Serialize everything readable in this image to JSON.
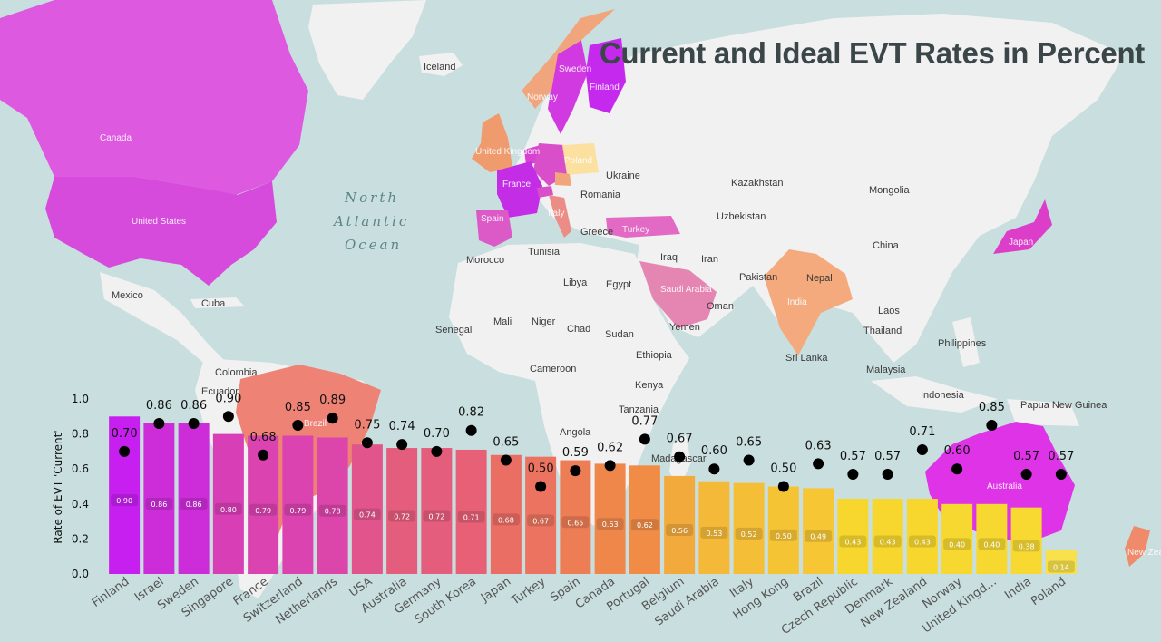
{
  "title": "Current and Ideal EVT Rates in Percent",
  "colors": {
    "ocean": "#c9dede",
    "land": "#f1f1f1",
    "high": "#c61ff0",
    "mid": "#e86e56",
    "low": "#f7de2d",
    "dot": "#000000"
  },
  "map": {
    "country_labels": [
      "Canada",
      "United States",
      "Mexico",
      "Cuba",
      "Colombia",
      "Ecuador",
      "Brazil",
      "Iceland",
      "Sweden",
      "Norway",
      "Finland",
      "United Kingdom",
      "Poland",
      "France",
      "Spain",
      "Italy",
      "Ukraine",
      "Romania",
      "Greece",
      "Turkey",
      "Tunisia",
      "Morocco",
      "Libya",
      "Egypt",
      "Iraq",
      "Iran",
      "Saudi Arabia",
      "Oman",
      "Yemen",
      "Kazakhstan",
      "Uzbekistan",
      "Mongolia",
      "China",
      "Pakistan",
      "Nepal",
      "India",
      "Sri Lanka",
      "Laos",
      "Thailand",
      "Philippines",
      "Malaysia",
      "Indonesia",
      "Papua New Guinea",
      "Japan",
      "Australia",
      "New Zealand",
      "Senegal",
      "Mali",
      "Niger",
      "Chad",
      "Sudan",
      "Ethiopia",
      "Cameroon",
      "Kenya",
      "Tanzania",
      "Angola",
      "Madagascar"
    ],
    "ocean_label": [
      "North",
      "Atlantic",
      "Ocean"
    ]
  },
  "chart_data": {
    "type": "bar",
    "title": "Current and Ideal EVT Rates in Percent",
    "ylabel": "Rate of EVT 'Current'",
    "xlabel": "",
    "ylim": [
      0,
      1.0
    ],
    "yticks": [
      "0.0",
      "0.2",
      "0.4",
      "0.6",
      "0.8",
      "1.0"
    ],
    "legend": "none",
    "grid": false,
    "categories": [
      "Finland",
      "Israel",
      "Sweden",
      "Singapore",
      "France",
      "Switzerland",
      "Netherlands",
      "USA",
      "Australia",
      "Germany",
      "South Korea",
      "Japan",
      "Turkey",
      "Spain",
      "Canada",
      "Portugal",
      "Belgium",
      "Saudi Arabia",
      "Italy",
      "Hong Kong",
      "Brazil",
      "Czech Republic",
      "Denmark",
      "New Zealand",
      "Norway",
      "United Kingd...",
      "India",
      "Poland"
    ],
    "series": [
      {
        "values": [
          0.9,
          0.86,
          0.86,
          0.8,
          0.79,
          0.79,
          0.78,
          0.74,
          0.72,
          0.72,
          0.71,
          0.68,
          0.67,
          0.65,
          0.63,
          0.62,
          0.56,
          0.53,
          0.52,
          0.5,
          0.49,
          0.43,
          0.43,
          0.43,
          0.4,
          0.4,
          0.38,
          0.14
        ],
        "labels": [
          "0.90",
          "0.86",
          "0.86",
          "0.80",
          "0.79",
          "0.79",
          "0.78",
          "0.74",
          "0.72",
          "0.72",
          "0.71",
          "0.68",
          "0.67",
          "0.65",
          "0.63",
          "0.62",
          "0.56",
          "0.53",
          "0.52",
          "0.50",
          "0.49",
          "0.43",
          "0.43",
          "0.43",
          "0.40",
          "0.40",
          "0.38",
          "0.14"
        ]
      },
      {
        "values": [
          0.7,
          0.86,
          0.86,
          0.9,
          0.68,
          0.85,
          0.89,
          0.75,
          0.74,
          0.7,
          0.82,
          0.65,
          0.5,
          0.59,
          0.62,
          0.77,
          0.67,
          0.6,
          0.65,
          0.5,
          0.63,
          0.57,
          0.57,
          0.71,
          0.6,
          0.85,
          0.57,
          0.57
        ],
        "labels": [
          "0.70",
          "0.86",
          "0.86",
          "0.90",
          "0.68",
          "0.85",
          "0.89",
          "0.75",
          "0.74",
          "0.70",
          "0.82",
          "0.65",
          "0.50",
          "0.59",
          "0.62",
          "0.77",
          "0.67",
          "0.60",
          "0.65",
          "0.50",
          "0.63",
          "0.57",
          "0.57",
          "0.71",
          "0.60",
          "0.85",
          "0.57",
          "0.57"
        ]
      }
    ]
  }
}
